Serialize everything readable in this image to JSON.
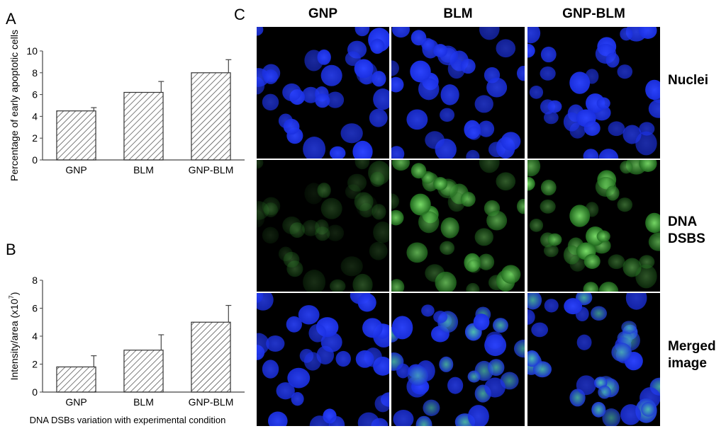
{
  "panels": {
    "a_letter": "A",
    "b_letter": "B",
    "c_letter": "C"
  },
  "chart_data": [
    {
      "type": "bar",
      "categories": [
        "GNP",
        "BLM",
        "GNP-BLM"
      ],
      "values": [
        4.5,
        6.2,
        8.0
      ],
      "errors": [
        0.3,
        1.0,
        1.2
      ],
      "ylabel": "Percentage of early apoptotic cells",
      "xlabel": "",
      "ylim": [
        0,
        10
      ],
      "yticks": [
        0,
        2,
        4,
        6,
        8,
        10
      ],
      "bar_fill": "diagonal-hatch",
      "grid": false
    },
    {
      "type": "bar",
      "categories": [
        "GNP",
        "BLM",
        "GNP-BLM"
      ],
      "values": [
        1.8,
        3.0,
        5.0
      ],
      "errors": [
        0.8,
        1.1,
        1.2
      ],
      "ylabel": "Intensity/area (x10",
      "ylabel_superscript": "7",
      "ylabel_suffix": ")",
      "xlabel": "DNA DSBs variation with experimental condition",
      "ylim": [
        0,
        8
      ],
      "yticks": [
        0,
        2,
        4,
        6,
        8
      ],
      "bar_fill": "diagonal-hatch",
      "grid": false
    }
  ],
  "micrograph_grid": {
    "columns": [
      "GNP",
      "BLM",
      "GNP-BLM"
    ],
    "rows": [
      {
        "label_line1": "Nuclei",
        "label_line2": "",
        "stain": "blue"
      },
      {
        "label_line1": "DNA",
        "label_line2": "DSBS",
        "stain": "green"
      },
      {
        "label_line1": "Merged",
        "label_line2": "image",
        "stain": "merged"
      }
    ],
    "colors": {
      "nuclei_blue": "#1a2fe0",
      "dsb_green": "#3fae3a",
      "background": "#000000"
    }
  }
}
